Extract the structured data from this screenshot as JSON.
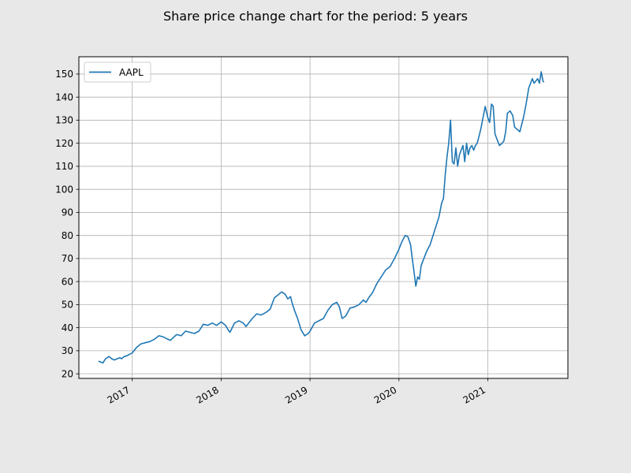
{
  "chart_data": {
    "type": "line",
    "title": "Share price change chart for the period: 5 years",
    "xlabel": "",
    "ylabel": "",
    "xlim": [
      2016.4,
      2021.9
    ],
    "ylim": [
      18,
      157.5
    ],
    "x_ticks": [
      2017,
      2018,
      2019,
      2020,
      2021
    ],
    "x_tick_labels": [
      "2017",
      "2018",
      "2019",
      "2020",
      "2021"
    ],
    "y_ticks": [
      20,
      30,
      40,
      50,
      60,
      70,
      80,
      90,
      100,
      110,
      120,
      130,
      140,
      150
    ],
    "grid": true,
    "legend_position": "top-left",
    "colors": {
      "series": "#1f77b4",
      "grid": "#b0b0b0",
      "axes": "#000000"
    },
    "series": [
      {
        "name": "AAPL",
        "x": [
          2016.62,
          2016.65,
          2016.67,
          2016.7,
          2016.72,
          2016.74,
          2016.77,
          2016.8,
          2016.83,
          2016.86,
          2016.88,
          2016.91,
          2016.94,
          2016.97,
          2017.0,
          2017.05,
          2017.1,
          2017.15,
          2017.2,
          2017.25,
          2017.3,
          2017.35,
          2017.4,
          2017.43,
          2017.47,
          2017.5,
          2017.55,
          2017.6,
          2017.65,
          2017.7,
          2017.75,
          2017.8,
          2017.85,
          2017.9,
          2017.95,
          2018.0,
          2018.05,
          2018.08,
          2018.1,
          2018.15,
          2018.2,
          2018.25,
          2018.28,
          2018.3,
          2018.35,
          2018.4,
          2018.45,
          2018.5,
          2018.55,
          2018.6,
          2018.65,
          2018.68,
          2018.72,
          2018.75,
          2018.78,
          2018.8,
          2018.83,
          2018.86,
          2018.9,
          2018.94,
          2018.98,
          2019.0,
          2019.05,
          2019.1,
          2019.15,
          2019.2,
          2019.25,
          2019.3,
          2019.33,
          2019.36,
          2019.4,
          2019.45,
          2019.5,
          2019.55,
          2019.6,
          2019.63,
          2019.66,
          2019.7,
          2019.75,
          2019.8,
          2019.85,
          2019.9,
          2019.95,
          2020.0,
          2020.03,
          2020.07,
          2020.1,
          2020.13,
          2020.15,
          2020.17,
          2020.19,
          2020.21,
          2020.23,
          2020.25,
          2020.28,
          2020.31,
          2020.35,
          2020.4,
          2020.45,
          2020.48,
          2020.5,
          2020.52,
          2020.54,
          2020.56,
          2020.58,
          2020.6,
          2020.62,
          2020.64,
          2020.66,
          2020.68,
          2020.7,
          2020.72,
          2020.74,
          2020.76,
          2020.78,
          2020.8,
          2020.82,
          2020.84,
          2020.86,
          2020.88,
          2020.9,
          2020.92,
          2020.94,
          2020.97,
          2021.0,
          2021.02,
          2021.04,
          2021.06,
          2021.08,
          2021.1,
          2021.13,
          2021.16,
          2021.18,
          2021.2,
          2021.22,
          2021.25,
          2021.28,
          2021.3,
          2021.33,
          2021.36,
          2021.4,
          2021.43,
          2021.46,
          2021.48,
          2021.5,
          2021.52,
          2021.54,
          2021.56,
          2021.58,
          2021.6,
          2021.62,
          2021.63
        ],
        "y": [
          25.5,
          25.0,
          24.7,
          26.5,
          27.0,
          27.5,
          26.5,
          26.0,
          26.5,
          27.0,
          26.5,
          27.5,
          27.8,
          28.5,
          29.0,
          31.5,
          33.0,
          33.5,
          34.0,
          35.0,
          36.5,
          36.0,
          35.0,
          34.5,
          36.0,
          37.0,
          36.5,
          38.5,
          38.0,
          37.5,
          38.5,
          41.5,
          41.0,
          42.0,
          41.0,
          42.5,
          41.0,
          39.0,
          38.0,
          42.0,
          43.0,
          42.0,
          40.5,
          41.5,
          44.0,
          46.0,
          45.5,
          46.5,
          48.0,
          53.0,
          54.5,
          55.5,
          54.5,
          52.5,
          53.5,
          50.5,
          47.0,
          44.0,
          39.0,
          36.5,
          37.5,
          38.5,
          42.0,
          43.0,
          44.0,
          47.5,
          50.0,
          51.0,
          49.0,
          44.0,
          45.0,
          48.5,
          49.0,
          50.0,
          52.0,
          51.0,
          53.0,
          55.0,
          59.0,
          62.0,
          65.0,
          66.5,
          70.0,
          74.0,
          77.0,
          80.0,
          79.5,
          76.0,
          70.0,
          64.0,
          58.0,
          62.0,
          61.0,
          67.0,
          70.0,
          73.0,
          76.0,
          82.0,
          88.0,
          94.0,
          96.0,
          106.0,
          114.0,
          120.0,
          130.0,
          112.0,
          111.0,
          118.0,
          110.0,
          115.0,
          117.0,
          119.0,
          112.0,
          120.0,
          115.0,
          118.0,
          119.0,
          117.0,
          119.0,
          120.0,
          123.0,
          126.0,
          130.0,
          136.0,
          131.0,
          129.0,
          137.0,
          136.0,
          124.0,
          122.0,
          119.0,
          120.0,
          121.0,
          125.0,
          133.0,
          134.0,
          132.0,
          127.0,
          126.0,
          125.0,
          131.0,
          137.0,
          144.0,
          146.0,
          148.0,
          146.0,
          147.0,
          148.0,
          146.0,
          151.0,
          147.0,
          146.5
        ]
      }
    ]
  }
}
